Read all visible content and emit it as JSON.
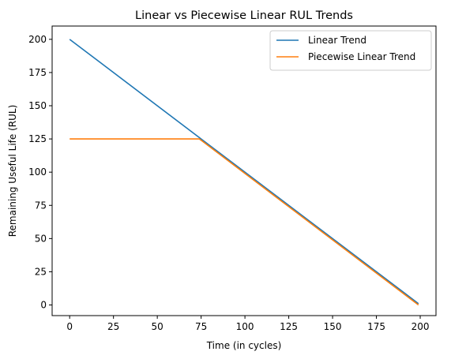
{
  "chart_data": {
    "type": "line",
    "title": "Linear vs Piecewise Linear RUL Trends",
    "xlabel": "Time (in cycles)",
    "ylabel": "Remaining Useful Life (RUL)",
    "xlim": [
      -10,
      209
    ],
    "ylim": [
      -8,
      210
    ],
    "xticks": [
      0,
      25,
      50,
      75,
      100,
      125,
      150,
      175,
      200
    ],
    "yticks": [
      0,
      25,
      50,
      75,
      100,
      125,
      150,
      175,
      200
    ],
    "grid": false,
    "legend_position": "top-right",
    "series": [
      {
        "name": "Linear Trend",
        "color": "#1f77b4",
        "x": [
          0,
          199
        ],
        "y": [
          200,
          1
        ]
      },
      {
        "name": "Piecewise Linear Trend",
        "color": "#ff7f0e",
        "x": [
          0,
          74,
          199
        ],
        "y": [
          125,
          125,
          0
        ]
      }
    ]
  }
}
